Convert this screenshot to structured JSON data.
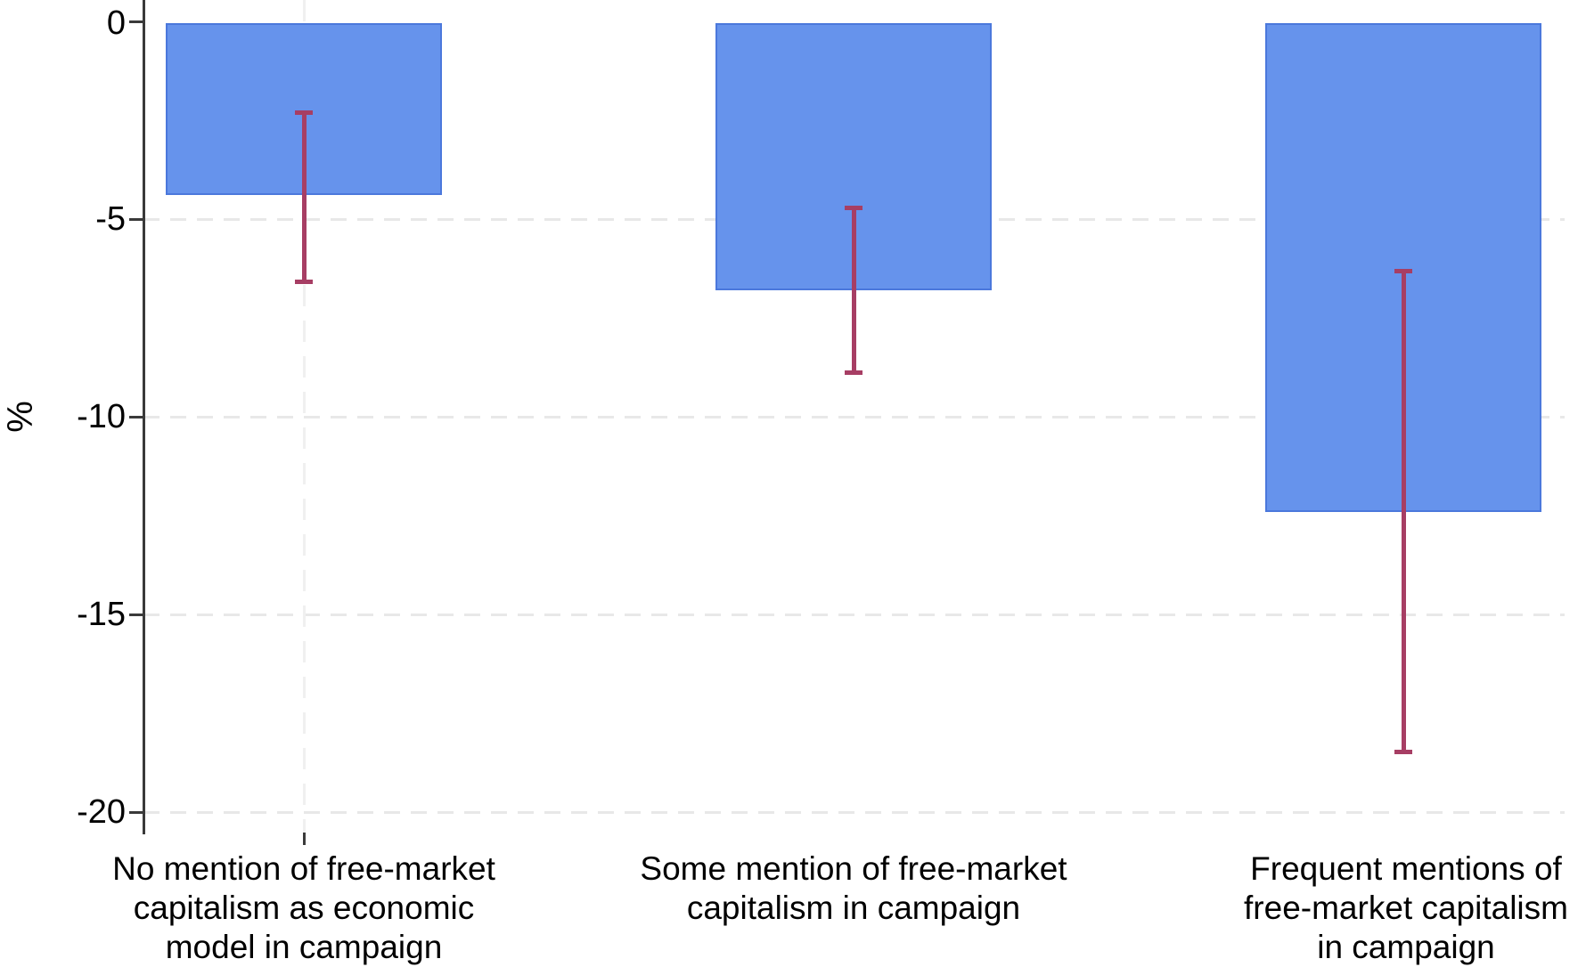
{
  "chart_data": {
    "type": "bar",
    "title": "",
    "xlabel": "",
    "ylabel": "%",
    "categories": [
      "No mention of free-market\ncapitalism as economic\nmodel in campaign",
      "Some mention of free-market\ncapitalism in campaign",
      "Frequent mentions of\nfree-market capitalism\nin campaign"
    ],
    "values": [
      -4.4,
      -6.8,
      -12.4
    ],
    "ci": [
      {
        "high": -2.3,
        "low": -6.6
      },
      {
        "high": -4.7,
        "low": -8.9
      },
      {
        "high": -6.3,
        "low": -18.5
      }
    ],
    "ytick_labels": [
      "0",
      "-5",
      "-10",
      "-15",
      "-20"
    ],
    "ytick_values": [
      0,
      -5,
      -10,
      -15,
      -20
    ],
    "ylim": [
      0,
      -20.5
    ],
    "grid": "horizontal dashed, light gray; faint vertical dashed line at first category",
    "legend": "none",
    "colors": {
      "bar_fill": "#6693ec",
      "bar_edge": "#4b78dc",
      "error_bar": "#a73e64",
      "gridline": "#e8e8e8",
      "vertical_gridline": "#f0f0f0",
      "axis": "#3a3a3a",
      "baseline": "#262626",
      "text": "#000000"
    }
  }
}
